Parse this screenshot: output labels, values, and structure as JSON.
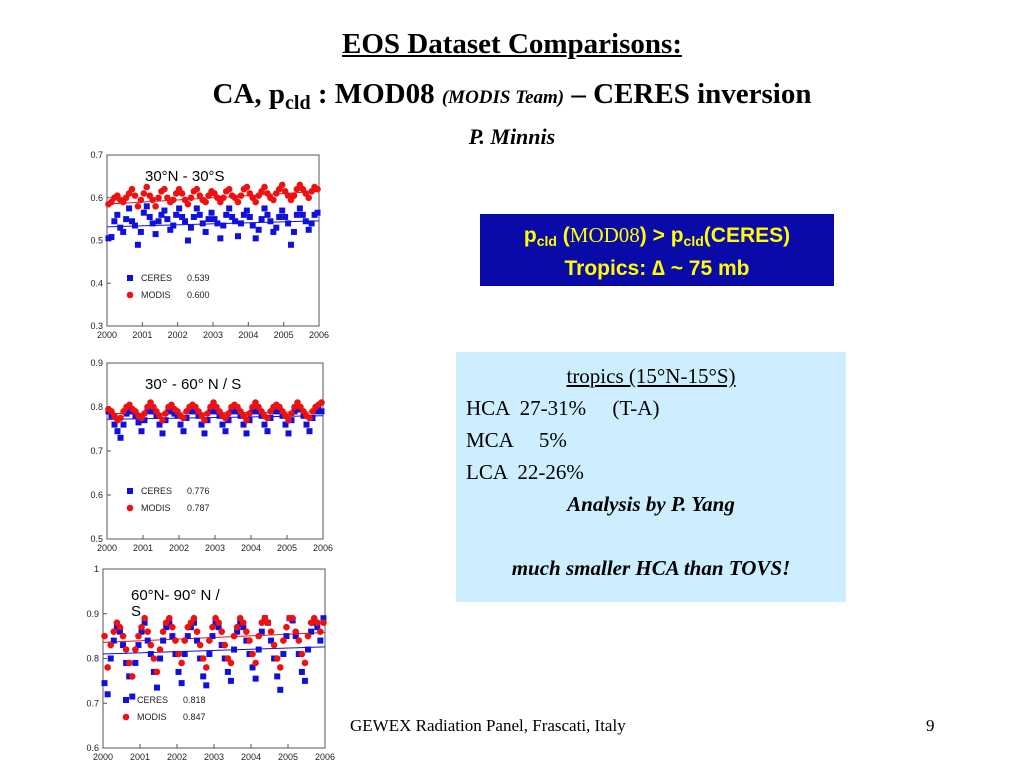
{
  "title": {
    "line1": "EOS Dataset Comparisons:",
    "line2_prefix": "CA, p",
    "line2_sub": "cld",
    "line2_mid": " : MOD08 ",
    "line2_team": "(MODIS Team)",
    "line2_suffix": " – CERES inversion"
  },
  "author": "P. Minnis",
  "tropics_box": {
    "p1": "p",
    "sub1": "cld",
    "paren_open": " (",
    "mod08": "MOD08",
    "mid": ") > p",
    "sub2": "cld",
    "ceres": "(CERES)",
    "line2": "Tropics: ∆ ~ 75 mb"
  },
  "layers_box": {
    "header": "tropics (15°N-15°S)",
    "rows": [
      "HCA  27-31%     (T-A)",
      "MCA     5%",
      "LCA  22-26%"
    ],
    "analysis": "Analysis by P. Yang",
    "note": "much smaller HCA than TOVS!"
  },
  "footer": "GEWEX Radiation Panel, Frascati, Italy",
  "page_number": "9",
  "colors": {
    "ceres": "#1010dd",
    "modis": "#ee1111",
    "box_blue": "#0a0aa8",
    "box_text": "#ffff00",
    "box_light": "#cceeff"
  },
  "chart_data": [
    {
      "type": "scatter",
      "region_label": "30°N - 30°S",
      "x_ticks": [
        "2000",
        "2001",
        "2002",
        "2003",
        "2004",
        "2005",
        "2006"
      ],
      "y_ticks": [
        "0.3",
        "0.4",
        "0.5",
        "0.6",
        "0.7"
      ],
      "xlim": [
        2000,
        2006
      ],
      "ylim": [
        0.3,
        0.7
      ],
      "legend_position": "bottom-left",
      "series": [
        {
          "name": "CERES",
          "mean_label": "0.539",
          "mean": 0.539,
          "trend": [
            0.532,
            0.546
          ],
          "values": [
            0.505,
            0.508,
            0.545,
            0.56,
            0.53,
            0.52,
            0.55,
            0.575,
            0.545,
            0.535,
            0.49,
            0.52,
            0.565,
            0.58,
            0.555,
            0.54,
            0.515,
            0.545,
            0.56,
            0.57,
            0.55,
            0.525,
            0.535,
            0.56,
            0.575,
            0.555,
            0.545,
            0.5,
            0.53,
            0.555,
            0.575,
            0.56,
            0.54,
            0.52,
            0.55,
            0.565,
            0.55,
            0.54,
            0.505,
            0.535,
            0.56,
            0.575,
            0.555,
            0.545,
            0.51,
            0.54,
            0.56,
            0.57,
            0.555,
            0.535,
            0.505,
            0.525,
            0.55,
            0.575,
            0.56,
            0.545,
            0.52,
            0.53,
            0.555,
            0.57,
            0.555,
            0.54,
            0.49,
            0.52,
            0.56,
            0.575,
            0.56,
            0.545,
            0.525,
            0.54,
            0.56,
            0.565
          ]
        },
        {
          "name": "MODIS",
          "mean_label": "0.600",
          "mean": 0.6,
          "trend": [
            0.585,
            0.615
          ],
          "values": [
            0.585,
            0.59,
            0.6,
            0.605,
            0.595,
            0.59,
            0.6,
            0.61,
            0.62,
            0.605,
            0.58,
            0.595,
            0.61,
            0.625,
            0.605,
            0.595,
            0.58,
            0.6,
            0.615,
            0.62,
            0.6,
            0.59,
            0.595,
            0.61,
            0.62,
            0.61,
            0.595,
            0.585,
            0.6,
            0.615,
            0.62,
            0.605,
            0.595,
            0.59,
            0.605,
            0.615,
            0.61,
            0.6,
            0.59,
            0.6,
            0.615,
            0.62,
            0.605,
            0.6,
            0.59,
            0.605,
            0.62,
            0.625,
            0.61,
            0.6,
            0.59,
            0.605,
            0.615,
            0.625,
            0.61,
            0.6,
            0.595,
            0.61,
            0.62,
            0.63,
            0.615,
            0.605,
            0.595,
            0.605,
            0.62,
            0.63,
            0.62,
            0.61,
            0.6,
            0.615,
            0.625,
            0.62
          ]
        }
      ]
    },
    {
      "type": "scatter",
      "region_label": "30° - 60° N / S",
      "x_ticks": [
        "2000",
        "2001",
        "2002",
        "2003",
        "2004",
        "2005",
        "2006"
      ],
      "y_ticks": [
        "0.5",
        "0.6",
        "0.7",
        "0.8",
        "0.9"
      ],
      "xlim": [
        2000,
        2006
      ],
      "ylim": [
        0.5,
        0.9
      ],
      "legend_position": "bottom-left",
      "series": [
        {
          "name": "CERES",
          "mean_label": "0.776",
          "mean": 0.776,
          "trend": [
            0.772,
            0.78
          ],
          "values": [
            0.79,
            0.78,
            0.76,
            0.745,
            0.73,
            0.76,
            0.785,
            0.795,
            0.79,
            0.78,
            0.765,
            0.745,
            0.77,
            0.79,
            0.8,
            0.79,
            0.78,
            0.76,
            0.74,
            0.77,
            0.79,
            0.795,
            0.785,
            0.78,
            0.76,
            0.745,
            0.775,
            0.79,
            0.795,
            0.79,
            0.78,
            0.76,
            0.74,
            0.77,
            0.79,
            0.8,
            0.79,
            0.78,
            0.76,
            0.745,
            0.77,
            0.79,
            0.795,
            0.79,
            0.78,
            0.76,
            0.74,
            0.77,
            0.79,
            0.8,
            0.79,
            0.78,
            0.76,
            0.745,
            0.775,
            0.79,
            0.795,
            0.79,
            0.78,
            0.76,
            0.74,
            0.77,
            0.79,
            0.8,
            0.795,
            0.78,
            0.76,
            0.745,
            0.775,
            0.79,
            0.795,
            0.79
          ]
        },
        {
          "name": "MODIS",
          "mean_label": "0.787",
          "mean": 0.787,
          "trend": [
            0.785,
            0.789
          ],
          "values": [
            0.795,
            0.79,
            0.78,
            0.77,
            0.775,
            0.79,
            0.8,
            0.805,
            0.795,
            0.79,
            0.78,
            0.775,
            0.785,
            0.8,
            0.81,
            0.8,
            0.79,
            0.78,
            0.77,
            0.785,
            0.8,
            0.805,
            0.795,
            0.79,
            0.78,
            0.775,
            0.79,
            0.8,
            0.805,
            0.8,
            0.79,
            0.78,
            0.77,
            0.785,
            0.8,
            0.81,
            0.8,
            0.79,
            0.78,
            0.775,
            0.785,
            0.8,
            0.805,
            0.8,
            0.79,
            0.78,
            0.77,
            0.785,
            0.8,
            0.81,
            0.8,
            0.79,
            0.78,
            0.775,
            0.79,
            0.8,
            0.805,
            0.8,
            0.79,
            0.78,
            0.77,
            0.785,
            0.8,
            0.81,
            0.8,
            0.79,
            0.78,
            0.775,
            0.79,
            0.8,
            0.805,
            0.81
          ]
        }
      ]
    },
    {
      "type": "scatter",
      "region_label": "60°N- 90° N / S",
      "x_ticks": [
        "2000",
        "2001",
        "2002",
        "2003",
        "2004",
        "2005",
        "2006"
      ],
      "y_ticks": [
        "0.6",
        "0.7",
        "0.8",
        "0.9",
        "1"
      ],
      "xlim": [
        2000,
        2006
      ],
      "ylim": [
        0.6,
        1.0
      ],
      "legend_position": "bottom-left",
      "series": [
        {
          "name": "CERES",
          "mean_label": "0.818",
          "mean": 0.818,
          "trend": [
            0.81,
            0.826
          ],
          "values": [
            0.745,
            0.72,
            0.8,
            0.84,
            0.87,
            0.86,
            0.83,
            0.79,
            0.76,
            0.715,
            0.79,
            0.83,
            0.86,
            0.88,
            0.84,
            0.81,
            0.77,
            0.735,
            0.8,
            0.84,
            0.87,
            0.88,
            0.85,
            0.81,
            0.77,
            0.745,
            0.81,
            0.85,
            0.87,
            0.88,
            0.84,
            0.8,
            0.76,
            0.74,
            0.81,
            0.85,
            0.88,
            0.87,
            0.83,
            0.8,
            0.77,
            0.75,
            0.82,
            0.86,
            0.88,
            0.87,
            0.84,
            0.81,
            0.78,
            0.755,
            0.82,
            0.86,
            0.89,
            0.88,
            0.84,
            0.8,
            0.76,
            0.73,
            0.81,
            0.85,
            0.89,
            0.885,
            0.85,
            0.81,
            0.77,
            0.75,
            0.82,
            0.86,
            0.88,
            0.87,
            0.84,
            0.89
          ]
        },
        {
          "name": "MODIS",
          "mean_label": "0.847",
          "mean": 0.847,
          "trend": [
            0.836,
            0.858
          ],
          "values": [
            0.85,
            0.78,
            0.83,
            0.86,
            0.88,
            0.87,
            0.85,
            0.82,
            0.79,
            0.76,
            0.82,
            0.85,
            0.87,
            0.89,
            0.86,
            0.83,
            0.8,
            0.77,
            0.82,
            0.86,
            0.88,
            0.89,
            0.87,
            0.84,
            0.81,
            0.79,
            0.84,
            0.87,
            0.88,
            0.89,
            0.86,
            0.83,
            0.8,
            0.78,
            0.84,
            0.87,
            0.89,
            0.88,
            0.86,
            0.83,
            0.8,
            0.79,
            0.85,
            0.87,
            0.89,
            0.88,
            0.86,
            0.84,
            0.81,
            0.79,
            0.85,
            0.88,
            0.89,
            0.88,
            0.86,
            0.83,
            0.8,
            0.78,
            0.84,
            0.87,
            0.89,
            0.89,
            0.86,
            0.84,
            0.81,
            0.79,
            0.85,
            0.88,
            0.89,
            0.88,
            0.86,
            0.88
          ]
        }
      ]
    }
  ]
}
